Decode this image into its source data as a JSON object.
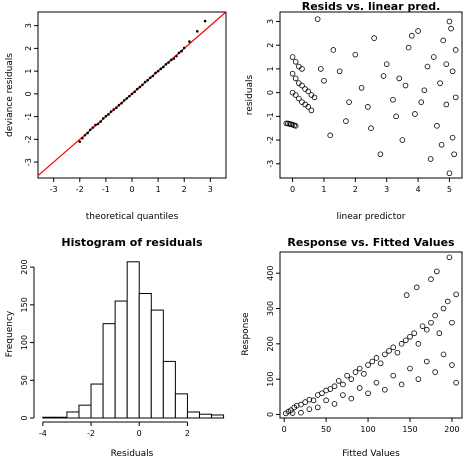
{
  "chart_data": [
    {
      "type": "scatter",
      "title": "",
      "xlabel": "theoretical quantiles",
      "ylabel": "deviance residuals",
      "xlim": [
        -3.6,
        3.6
      ],
      "ylim": [
        -3.7,
        3.6
      ],
      "xticks": [
        "-3",
        "-2",
        "-1",
        "0",
        "1",
        "2",
        "3"
      ],
      "yticks": [
        "-3",
        "-2",
        "-1",
        "0",
        "1",
        "2",
        "3"
      ],
      "reference_line": {
        "intercept": 0,
        "slope": 1,
        "color": "#ff0000"
      },
      "points": [
        [
          -2.0,
          -2.1
        ],
        [
          -1.9,
          -1.95
        ],
        [
          -1.8,
          -1.82
        ],
        [
          -1.7,
          -1.72
        ],
        [
          -1.6,
          -1.58
        ],
        [
          -1.5,
          -1.48
        ],
        [
          -1.4,
          -1.37
        ],
        [
          -1.3,
          -1.32
        ],
        [
          -1.2,
          -1.22
        ],
        [
          -1.1,
          -1.08
        ],
        [
          -1.0,
          -0.98
        ],
        [
          -0.9,
          -0.9
        ],
        [
          -0.8,
          -0.78
        ],
        [
          -0.7,
          -0.69
        ],
        [
          -0.6,
          -0.61
        ],
        [
          -0.5,
          -0.5
        ],
        [
          -0.4,
          -0.41
        ],
        [
          -0.3,
          -0.29
        ],
        [
          -0.2,
          -0.2
        ],
        [
          -0.1,
          -0.1
        ],
        [
          0,
          0.0
        ],
        [
          0.1,
          0.09
        ],
        [
          0.2,
          0.21
        ],
        [
          0.3,
          0.3
        ],
        [
          0.4,
          0.4
        ],
        [
          0.5,
          0.52
        ],
        [
          0.6,
          0.6
        ],
        [
          0.7,
          0.71
        ],
        [
          0.8,
          0.79
        ],
        [
          0.9,
          0.92
        ],
        [
          1.0,
          1.0
        ],
        [
          1.1,
          1.1
        ],
        [
          1.2,
          1.18
        ],
        [
          1.3,
          1.3
        ],
        [
          1.4,
          1.38
        ],
        [
          1.5,
          1.49
        ],
        [
          1.6,
          1.55
        ],
        [
          1.7,
          1.66
        ],
        [
          1.8,
          1.8
        ],
        [
          1.9,
          1.88
        ],
        [
          2.0,
          2.02
        ],
        [
          2.2,
          2.3
        ],
        [
          2.5,
          2.75
        ],
        [
          2.8,
          3.2
        ]
      ]
    },
    {
      "type": "scatter",
      "title": "Resids vs. linear pred.",
      "xlabel": "linear predictor",
      "ylabel": "residuals",
      "xlim": [
        -0.4,
        5.4
      ],
      "ylim": [
        -3.6,
        3.4
      ],
      "xticks": [
        "0",
        "1",
        "2",
        "3",
        "4",
        "5"
      ],
      "yticks": [
        "-3",
        "-2",
        "-1",
        "0",
        "1",
        "2",
        "3"
      ],
      "points": [
        [
          -0.2,
          -1.3
        ],
        [
          -0.15,
          -1.3
        ],
        [
          -0.1,
          -1.32
        ],
        [
          -0.05,
          -1.33
        ],
        [
          0,
          -1.35
        ],
        [
          0.05,
          -1.38
        ],
        [
          0.1,
          -1.4
        ],
        [
          0.0,
          0.0
        ],
        [
          0.1,
          -0.1
        ],
        [
          0.2,
          -0.25
        ],
        [
          0.3,
          -0.4
        ],
        [
          0.4,
          -0.5
        ],
        [
          0.5,
          -0.6
        ],
        [
          0.6,
          -0.75
        ],
        [
          0.0,
          0.8
        ],
        [
          0.1,
          0.6
        ],
        [
          0.2,
          0.4
        ],
        [
          0.3,
          0.3
        ],
        [
          0.4,
          0.15
        ],
        [
          0.5,
          0.05
        ],
        [
          0.6,
          -0.1
        ],
        [
          0.7,
          -0.2
        ],
        [
          0.0,
          1.5
        ],
        [
          0.1,
          1.3
        ],
        [
          0.2,
          1.1
        ],
        [
          0.3,
          1.0
        ],
        [
          0.8,
          3.1
        ],
        [
          0.9,
          1.0
        ],
        [
          1.0,
          0.5
        ],
        [
          1.2,
          -1.8
        ],
        [
          1.5,
          0.9
        ],
        [
          1.7,
          -1.2
        ],
        [
          2.0,
          1.6
        ],
        [
          2.2,
          0.2
        ],
        [
          2.4,
          -0.6
        ],
        [
          2.6,
          2.3
        ],
        [
          2.8,
          -2.6
        ],
        [
          3.0,
          1.2
        ],
        [
          3.2,
          -0.3
        ],
        [
          3.4,
          0.6
        ],
        [
          3.5,
          -2.0
        ],
        [
          3.7,
          1.9
        ],
        [
          3.9,
          -0.9
        ],
        [
          4.0,
          2.6
        ],
        [
          4.2,
          0.1
        ],
        [
          4.4,
          -2.8
        ],
        [
          4.5,
          1.5
        ],
        [
          4.6,
          -1.4
        ],
        [
          4.7,
          0.4
        ],
        [
          4.8,
          2.2
        ],
        [
          4.9,
          -0.5
        ],
        [
          5.0,
          3.0
        ],
        [
          5.0,
          -3.4
        ],
        [
          5.1,
          0.9
        ],
        [
          5.1,
          -1.9
        ],
        [
          5.2,
          1.8
        ],
        [
          5.2,
          -0.2
        ],
        [
          3.6,
          0.3
        ],
        [
          2.9,
          0.7
        ],
        [
          4.1,
          -0.4
        ],
        [
          4.3,
          1.1
        ],
        [
          1.8,
          -0.4
        ],
        [
          2.5,
          -1.5
        ],
        [
          3.3,
          -1.0
        ],
        [
          3.8,
          2.4
        ],
        [
          4.9,
          1.2
        ],
        [
          5.15,
          -2.6
        ],
        [
          4.75,
          -2.2
        ],
        [
          5.05,
          2.7
        ],
        [
          1.3,
          1.8
        ]
      ]
    },
    {
      "type": "bar",
      "title": "Histogram of residuals",
      "xlabel": "Residuals",
      "ylabel": "Frequency",
      "xlim": [
        -4.2,
        3.6
      ],
      "ylim": [
        0,
        220
      ],
      "xticks": [
        "-4",
        "-2",
        "0",
        "2"
      ],
      "yticks": [
        "0",
        "50",
        "100",
        "150",
        "200"
      ],
      "bins": [
        [
          -4.0,
          -3.5,
          1
        ],
        [
          -3.5,
          -3.0,
          1
        ],
        [
          -3.0,
          -2.5,
          8
        ],
        [
          -2.5,
          -2.0,
          17
        ],
        [
          -2.0,
          -1.5,
          45
        ],
        [
          -1.5,
          -1.0,
          125
        ],
        [
          -1.0,
          -0.5,
          155
        ],
        [
          -0.5,
          0.0,
          207
        ],
        [
          0.0,
          0.5,
          165
        ],
        [
          0.5,
          1.0,
          143
        ],
        [
          1.0,
          1.5,
          75
        ],
        [
          1.5,
          2.0,
          32
        ],
        [
          2.0,
          2.5,
          8
        ],
        [
          2.5,
          3.0,
          5
        ],
        [
          3.0,
          3.5,
          4
        ]
      ]
    },
    {
      "type": "scatter",
      "title": "Response vs. Fitted Values",
      "xlabel": "Fitted Values",
      "ylabel": "Response",
      "xlim": [
        -5,
        212
      ],
      "ylim": [
        -10,
        460
      ],
      "xticks": [
        "0",
        "50",
        "100",
        "150",
        "200"
      ],
      "yticks": [
        "0",
        "100",
        "200",
        "300",
        "400"
      ],
      "points": [
        [
          2,
          3
        ],
        [
          5,
          8
        ],
        [
          8,
          12
        ],
        [
          12,
          20
        ],
        [
          15,
          25
        ],
        [
          20,
          28
        ],
        [
          25,
          35
        ],
        [
          30,
          42
        ],
        [
          35,
          40
        ],
        [
          40,
          55
        ],
        [
          45,
          60
        ],
        [
          50,
          68
        ],
        [
          55,
          72
        ],
        [
          60,
          80
        ],
        [
          65,
          95
        ],
        [
          70,
          85
        ],
        [
          75,
          110
        ],
        [
          80,
          100
        ],
        [
          85,
          120
        ],
        [
          90,
          130
        ],
        [
          95,
          115
        ],
        [
          100,
          140
        ],
        [
          105,
          150
        ],
        [
          110,
          160
        ],
        [
          115,
          145
        ],
        [
          120,
          170
        ],
        [
          125,
          180
        ],
        [
          130,
          190
        ],
        [
          135,
          175
        ],
        [
          140,
          200
        ],
        [
          145,
          210
        ],
        [
          150,
          220
        ],
        [
          155,
          230
        ],
        [
          160,
          200
        ],
        [
          165,
          250
        ],
        [
          170,
          240
        ],
        [
          175,
          260
        ],
        [
          180,
          280
        ],
        [
          185,
          230
        ],
        [
          190,
          300
        ],
        [
          195,
          320
        ],
        [
          200,
          260
        ],
        [
          205,
          340
        ],
        [
          197,
          445
        ],
        [
          182,
          405
        ],
        [
          175,
          383
        ],
        [
          158,
          360
        ],
        [
          146,
          338
        ],
        [
          20,
          5
        ],
        [
          40,
          20
        ],
        [
          60,
          30
        ],
        [
          80,
          45
        ],
        [
          100,
          60
        ],
        [
          120,
          70
        ],
        [
          140,
          85
        ],
        [
          160,
          100
        ],
        [
          180,
          120
        ],
        [
          200,
          140
        ],
        [
          205,
          90
        ],
        [
          190,
          170
        ],
        [
          170,
          150
        ],
        [
          150,
          130
        ],
        [
          130,
          110
        ],
        [
          110,
          90
        ],
        [
          90,
          75
        ],
        [
          70,
          55
        ],
        [
          50,
          40
        ],
        [
          30,
          15
        ],
        [
          10,
          4
        ]
      ]
    }
  ]
}
